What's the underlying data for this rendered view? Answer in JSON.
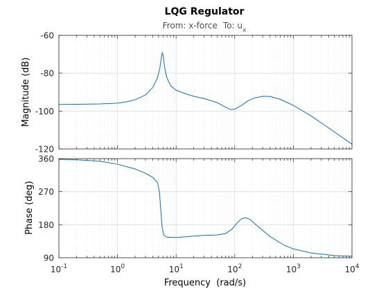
{
  "chart_data": {
    "type": "line",
    "title": "LQG Regulator",
    "subtitle": {
      "from_label": "From: x-force",
      "to_prefix": "To: u",
      "to_subscript": "x"
    },
    "xlabel": "Frequency  (rad/s)",
    "xscale": "log",
    "xlim": [
      0.1,
      10000
    ],
    "xticks": [
      {
        "value": 0.1,
        "base": "10",
        "exp": "-1"
      },
      {
        "value": 1,
        "base": "10",
        "exp": "0"
      },
      {
        "value": 10,
        "base": "10",
        "exp": "1"
      },
      {
        "value": 100,
        "base": "10",
        "exp": "2"
      },
      {
        "value": 1000,
        "base": "10",
        "exp": "3"
      },
      {
        "value": 10000,
        "base": "10",
        "exp": "4"
      }
    ],
    "grid": true,
    "line_color": "#0072BD",
    "panels": [
      {
        "name": "magnitude",
        "ylabel": "Magnitude (dB)",
        "ylim": [
          -120,
          -60
        ],
        "yticks": [
          -120,
          -100,
          -80,
          -60
        ],
        "ytick_labels": [
          "-120",
          "-100",
          "-80",
          "-60"
        ],
        "points": [
          [
            0.1,
            -96.5
          ],
          [
            0.2,
            -96.4
          ],
          [
            0.5,
            -96.2
          ],
          [
            1,
            -95.8
          ],
          [
            1.5,
            -95.0
          ],
          [
            2,
            -94.0
          ],
          [
            3,
            -91.5
          ],
          [
            4,
            -87.5
          ],
          [
            4.8,
            -82.5
          ],
          [
            5.3,
            -77.0
          ],
          [
            5.6,
            -71.5
          ],
          [
            5.8,
            -69.0
          ],
          [
            6.0,
            -70.5
          ],
          [
            6.3,
            -76.0
          ],
          [
            6.8,
            -81.5
          ],
          [
            8,
            -86.5
          ],
          [
            10,
            -89.0
          ],
          [
            15,
            -91.0
          ],
          [
            20,
            -92.2
          ],
          [
            30,
            -93.4
          ],
          [
            50,
            -95.5
          ],
          [
            70,
            -98.0
          ],
          [
            85,
            -99.2
          ],
          [
            100,
            -99.0
          ],
          [
            130,
            -97.0
          ],
          [
            170,
            -94.5
          ],
          [
            220,
            -93.0
          ],
          [
            300,
            -92.2
          ],
          [
            400,
            -92.3
          ],
          [
            600,
            -93.8
          ],
          [
            1000,
            -97.0
          ],
          [
            2000,
            -102.5
          ],
          [
            5000,
            -111.0
          ],
          [
            10000,
            -117.5
          ]
        ]
      },
      {
        "name": "phase",
        "ylabel": "Phase (deg)",
        "ylim": [
          90,
          360
        ],
        "yticks": [
          90,
          180,
          270,
          360
        ],
        "ytick_labels": [
          "90",
          "180",
          "270",
          "360"
        ],
        "points": [
          [
            0.1,
            358
          ],
          [
            0.2,
            357
          ],
          [
            0.5,
            353
          ],
          [
            1,
            345
          ],
          [
            2,
            332
          ],
          [
            3,
            320
          ],
          [
            4,
            309
          ],
          [
            4.8,
            295
          ],
          [
            5.2,
            270
          ],
          [
            5.5,
            215
          ],
          [
            5.8,
            170
          ],
          [
            6.2,
            151
          ],
          [
            7,
            146
          ],
          [
            10,
            145
          ],
          [
            20,
            149
          ],
          [
            30,
            151
          ],
          [
            50,
            152
          ],
          [
            70,
            156
          ],
          [
            90,
            168
          ],
          [
            110,
            185
          ],
          [
            130,
            196
          ],
          [
            150,
            199
          ],
          [
            180,
            195
          ],
          [
            250,
            175
          ],
          [
            400,
            148
          ],
          [
            700,
            124
          ],
          [
            1000,
            114
          ],
          [
            2000,
            103
          ],
          [
            5000,
            96
          ],
          [
            10000,
            94
          ]
        ]
      }
    ]
  }
}
